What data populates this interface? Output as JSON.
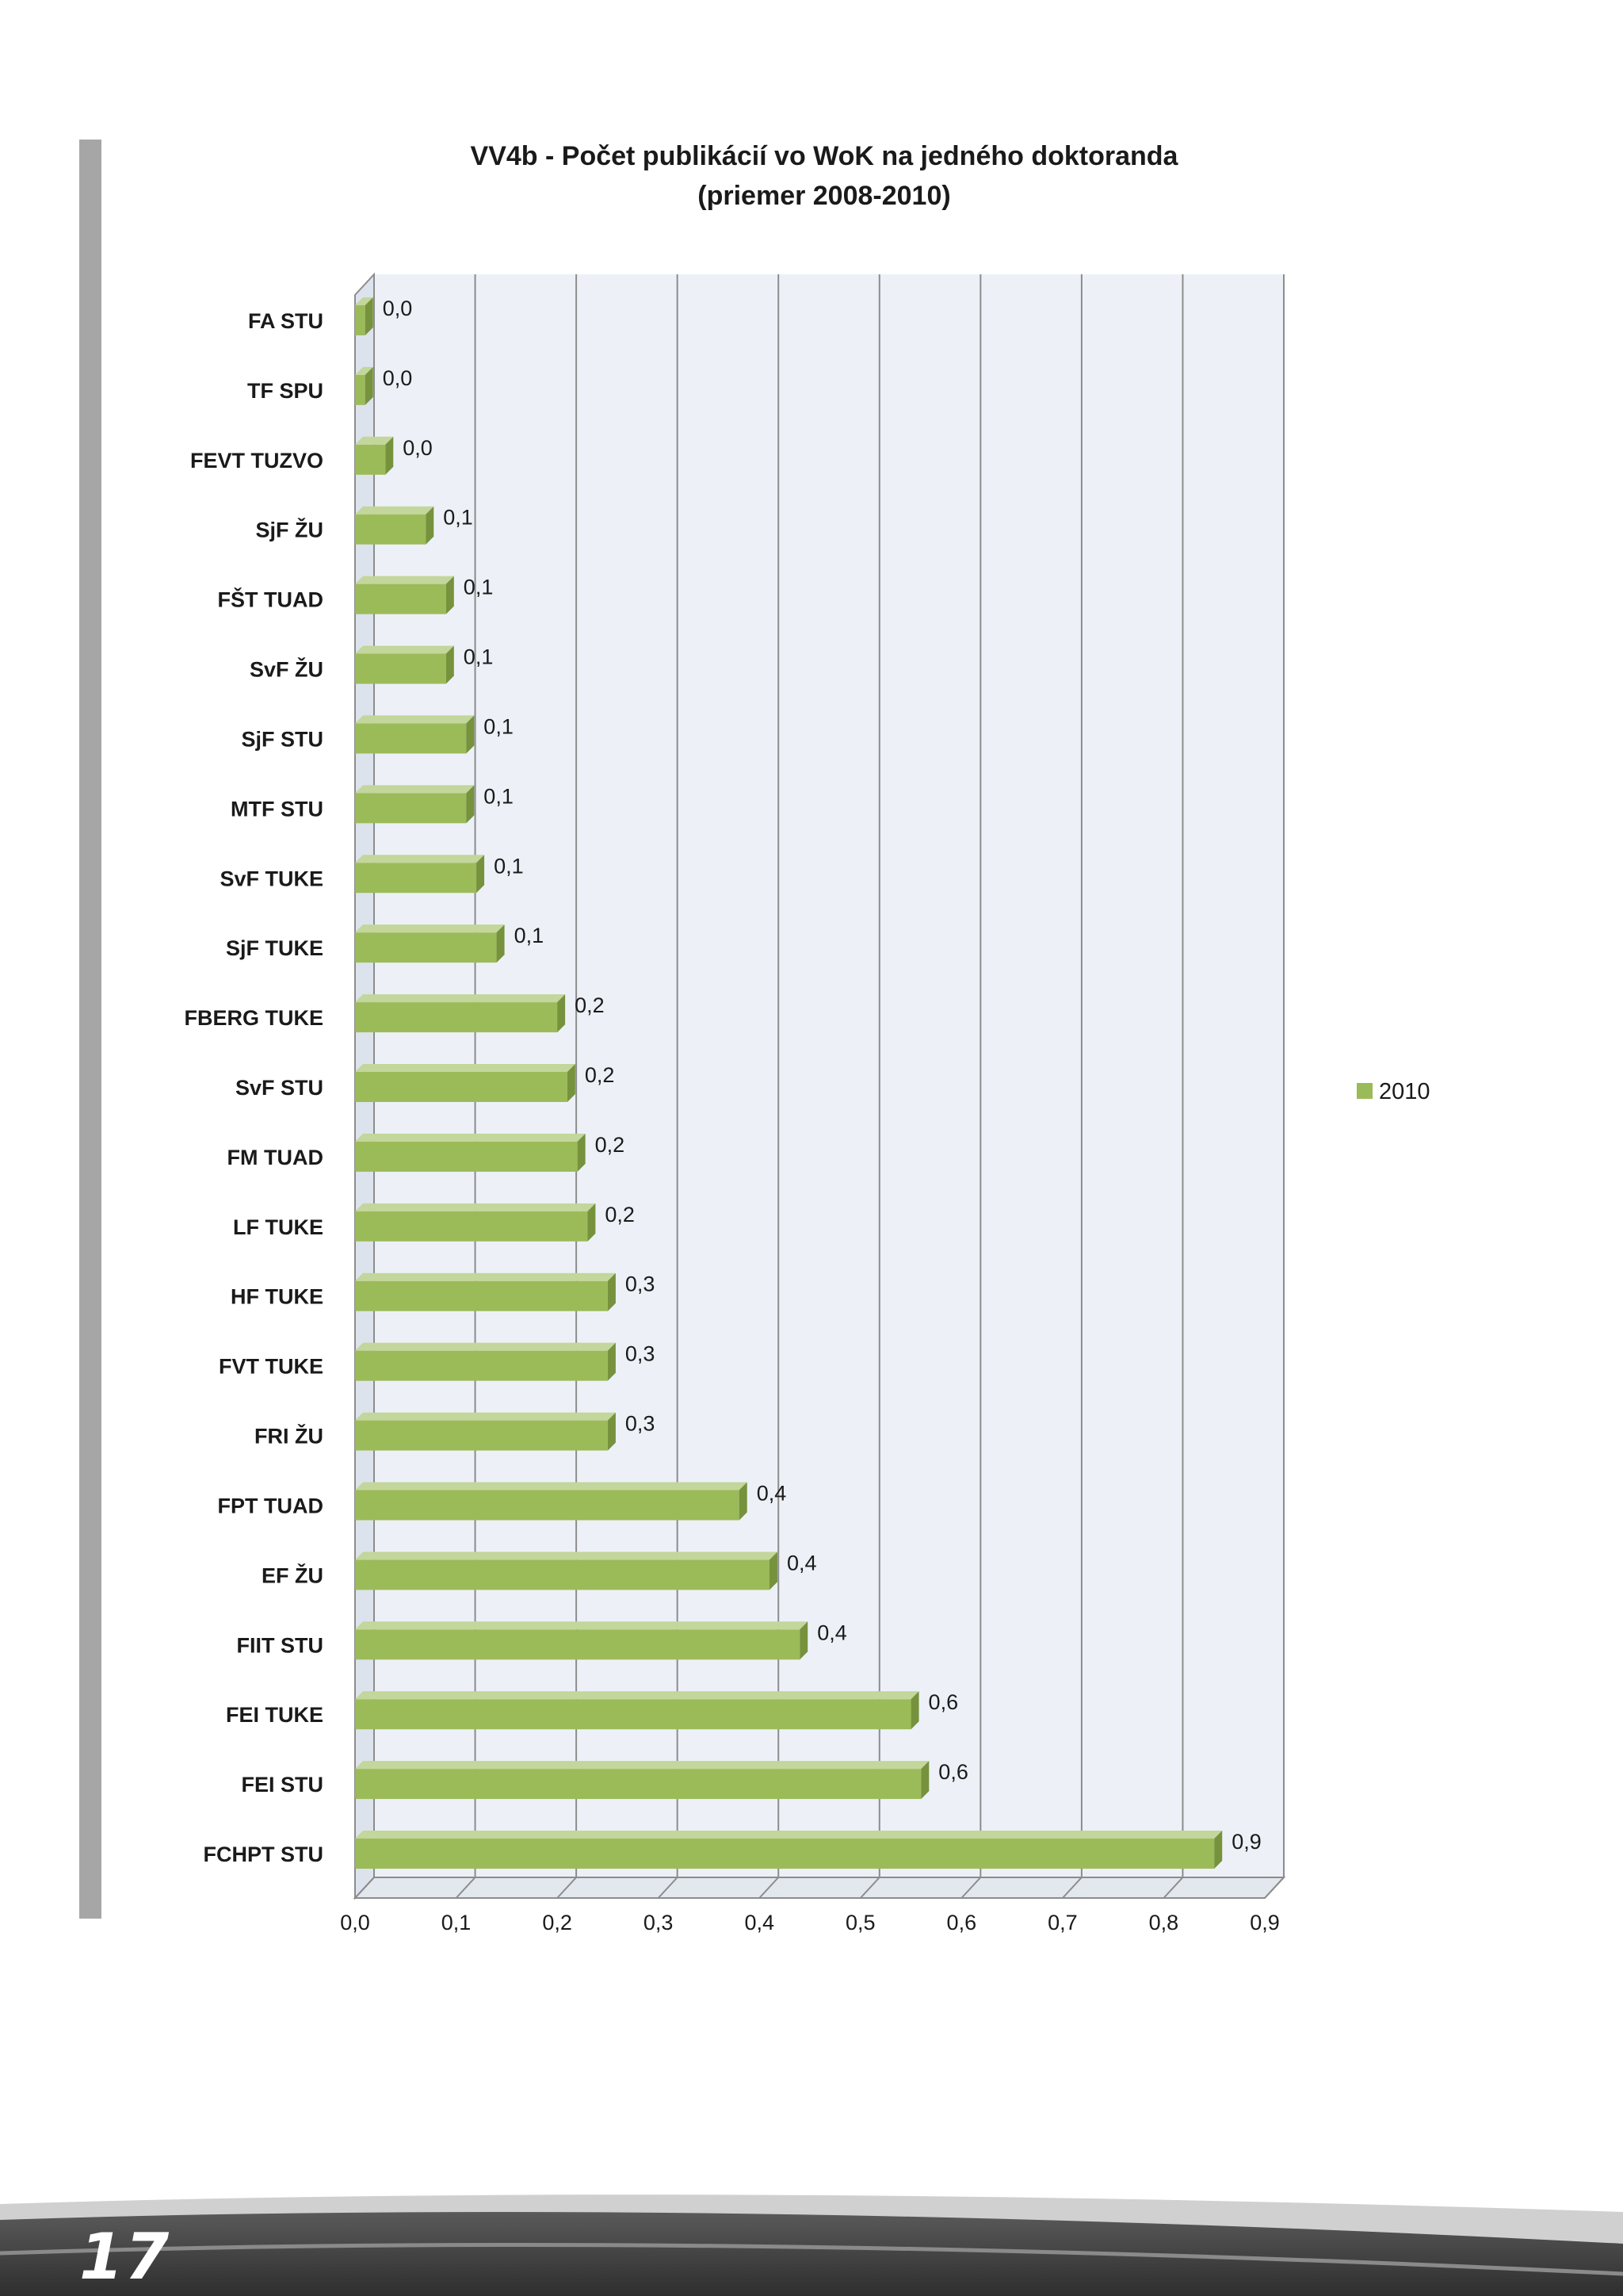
{
  "page": {
    "number": "17"
  },
  "chart_data": {
    "type": "bar",
    "orientation": "horizontal",
    "title": "VV4b - Počet publikácií vo WoK na jedného doktoranda",
    "subtitle": "(priemer 2008-2010)",
    "categories": [
      "FA STU",
      "TF SPU",
      "FEVT TUZVO",
      "SjF ŽU",
      "FŠT TUAD",
      "SvF ŽU",
      "SjF STU",
      "MTF STU",
      "SvF TUKE",
      "SjF TUKE",
      "FBERG  TUKE",
      "SvF STU",
      "FM TUAD",
      "LF TUKE",
      "HF TUKE",
      "FVT TUKE",
      "FRI ŽU",
      "FPT TUAD",
      "EF ŽU",
      "FIIT STU",
      "FEI TUKE",
      "FEI STU",
      "FCHPT STU"
    ],
    "series": [
      {
        "name": "2010",
        "color": "#9bbb59",
        "values": [
          0.01,
          0.01,
          0.03,
          0.07,
          0.09,
          0.09,
          0.11,
          0.11,
          0.12,
          0.14,
          0.2,
          0.21,
          0.22,
          0.23,
          0.25,
          0.25,
          0.25,
          0.38,
          0.41,
          0.44,
          0.55,
          0.56,
          0.85
        ],
        "data_labels": [
          "0,0",
          "0,0",
          "0,0",
          "0,1",
          "0,1",
          "0,1",
          "0,1",
          "0,1",
          "0,1",
          "0,1",
          "0,2",
          "0,2",
          "0,2",
          "0,2",
          "0,3",
          "0,3",
          "0,3",
          "0,4",
          "0,4",
          "0,4",
          "0,6",
          "0,6",
          "0,9"
        ]
      }
    ],
    "xlim": [
      0,
      0.9
    ],
    "x_ticks": [
      "0,0",
      "0,1",
      "0,2",
      "0,3",
      "0,4",
      "0,5",
      "0,6",
      "0,7",
      "0,8",
      "0,9"
    ],
    "grid": true,
    "legend_position": "right",
    "colors": {
      "bar_front": "#9bbb59",
      "bar_top": "#c3d69b",
      "bar_side": "#76923c",
      "plot_back": "#edf1f7",
      "grid": "#8c8c8c"
    }
  }
}
